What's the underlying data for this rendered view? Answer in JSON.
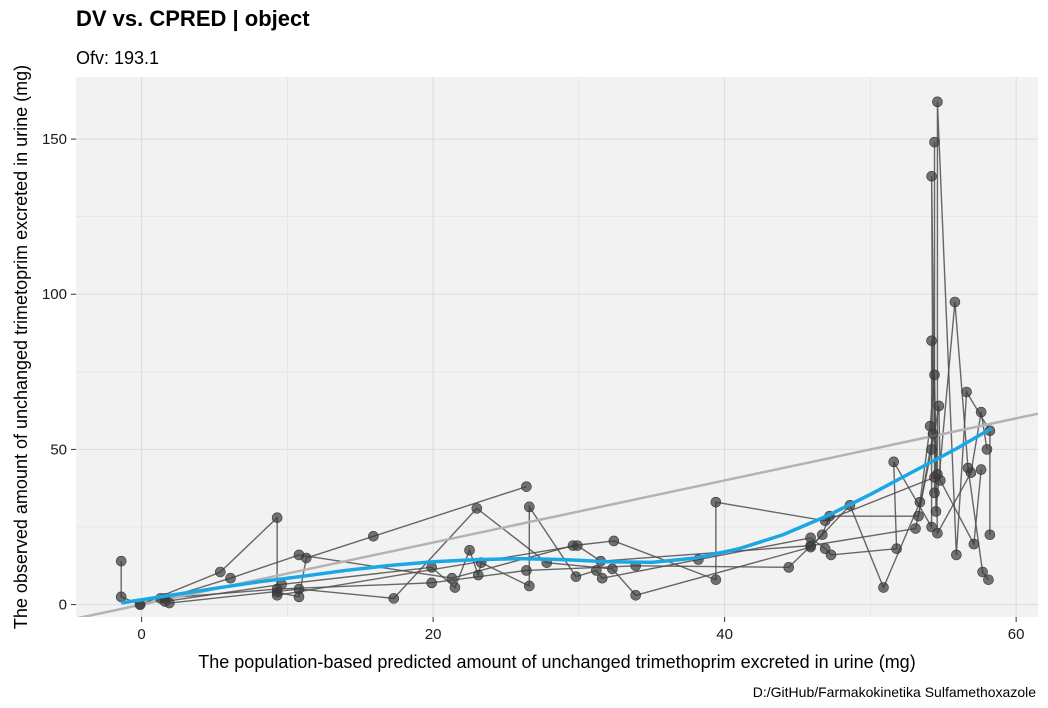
{
  "chart_data": {
    "type": "scatter",
    "title": "DV vs. CPRED | object",
    "subtitle": "Ofv: 193.1",
    "xlabel": "The population-based predicted amount of unchanged trimethoprim excreted in urine (mg)",
    "ylabel": "The observed amount of unchanged trimetoprim excreted in urine (mg)",
    "caption": "D:/GitHub/Farmakokinetika Sulfamethoxazole",
    "xlim": [
      -4.5,
      61.5
    ],
    "ylim": [
      -4,
      170
    ],
    "x_ticks": [
      0,
      20,
      40,
      60
    ],
    "y_ticks": [
      0,
      50,
      100,
      150
    ],
    "grid": true,
    "colors": {
      "panel": "#f2f2f2",
      "grid": "#dcdcdc",
      "points": "#3a3a3a",
      "lines": "#4d4d4d",
      "identity_line": "#b3b3b3",
      "smooth": "#1aa7e6"
    },
    "series": [
      {
        "id": 1,
        "points": [
          [
            -1.4,
            14
          ],
          [
            -1.4,
            2.5
          ],
          [
            -0.1,
            0
          ],
          [
            5.4,
            10.5
          ],
          [
            9.3,
            28
          ],
          [
            9.3,
            4
          ],
          [
            10.8,
            2.5
          ],
          [
            11.3,
            15
          ],
          [
            15.9,
            22
          ],
          [
            26.4,
            38
          ]
        ]
      },
      {
        "id": 2,
        "points": [
          [
            -0.1,
            0
          ],
          [
            1.6,
            2
          ],
          [
            6.1,
            8.5
          ],
          [
            10.8,
            16
          ],
          [
            21.3,
            8.5
          ],
          [
            29.6,
            19
          ],
          [
            32.4,
            20.5
          ],
          [
            39.4,
            8
          ],
          [
            39.4,
            33
          ],
          [
            46.9,
            27
          ],
          [
            54.4,
            41
          ],
          [
            54.4,
            149
          ],
          [
            54.4,
            36
          ]
        ]
      },
      {
        "id": 3,
        "points": [
          [
            1.6,
            1
          ],
          [
            9.6,
            6.5
          ],
          [
            19.9,
            12
          ],
          [
            21.5,
            5.5
          ],
          [
            22.5,
            17.5
          ],
          [
            23.1,
            9.5
          ],
          [
            23.3,
            13.5
          ],
          [
            26.6,
            6
          ],
          [
            26.6,
            31.5
          ],
          [
            29.8,
            9
          ],
          [
            31.2,
            11
          ],
          [
            31.6,
            8.5
          ],
          [
            38.2,
            14.5
          ],
          [
            45.9,
            21.5
          ],
          [
            46.9,
            18
          ],
          [
            47.3,
            16
          ],
          [
            51.8,
            18
          ],
          [
            51.6,
            46
          ],
          [
            54.2,
            25
          ],
          [
            54.2,
            85
          ],
          [
            54.6,
            42
          ],
          [
            54.6,
            162
          ],
          [
            55.9,
            16
          ],
          [
            56.6,
            68.5
          ],
          [
            58.2,
            56
          ],
          [
            58.2,
            22.5
          ]
        ]
      },
      {
        "id": 4,
        "points": [
          [
            1.9,
            0.5
          ],
          [
            10.8,
            5
          ],
          [
            17.3,
            2
          ],
          [
            23.0,
            31
          ],
          [
            27.8,
            13.5
          ],
          [
            32.3,
            11.5
          ],
          [
            33.9,
            3
          ],
          [
            45.9,
            18.5
          ],
          [
            48.6,
            32
          ],
          [
            50.9,
            5.5
          ],
          [
            53.4,
            33
          ],
          [
            54.1,
            57.5
          ],
          [
            54.4,
            74
          ],
          [
            54.6,
            23
          ],
          [
            56.9,
            42.5
          ],
          [
            57.6,
            62
          ],
          [
            58.0,
            50
          ]
        ]
      },
      {
        "id": 5,
        "points": [
          [
            1.3,
            2
          ],
          [
            9.3,
            5
          ],
          [
            19.9,
            7
          ],
          [
            26.4,
            11
          ],
          [
            33.9,
            12.5
          ],
          [
            44.4,
            12
          ],
          [
            46.7,
            22.5
          ],
          [
            47.2,
            28.5
          ],
          [
            53.3,
            28.5
          ],
          [
            54.3,
            55
          ],
          [
            54.2,
            138
          ],
          [
            54.5,
            30
          ],
          [
            55.8,
            97.5
          ],
          [
            56.7,
            44
          ],
          [
            57.7,
            10.5
          ],
          [
            58.1,
            8
          ]
        ]
      },
      {
        "id": 6,
        "points": [
          [
            9.3,
            3
          ],
          [
            29.9,
            19
          ],
          [
            31.5,
            14
          ],
          [
            45.9,
            19
          ],
          [
            53.1,
            24.5
          ],
          [
            54.2,
            50
          ],
          [
            54.7,
            64
          ],
          [
            54.8,
            40
          ],
          [
            57.1,
            19.5
          ],
          [
            57.6,
            43.5
          ]
        ]
      }
    ],
    "identity_line": [
      [
        -4.5,
        -4.5
      ],
      [
        61.5,
        61.5
      ]
    ],
    "smooth": [
      [
        -1.3,
        0.6
      ],
      [
        2,
        3
      ],
      [
        5,
        5.2
      ],
      [
        8,
        7.3
      ],
      [
        11,
        9.1
      ],
      [
        14,
        11
      ],
      [
        17,
        12.6
      ],
      [
        20,
        13.8
      ],
      [
        23,
        14.5
      ],
      [
        26,
        14.8
      ],
      [
        29,
        14.5
      ],
      [
        32,
        13.8
      ],
      [
        35,
        13.6
      ],
      [
        38,
        15
      ],
      [
        41,
        18
      ],
      [
        44,
        22.5
      ],
      [
        47,
        28.5
      ],
      [
        50,
        35.5
      ],
      [
        53,
        43
      ],
      [
        56,
        50.5
      ],
      [
        58.2,
        56.5
      ]
    ]
  }
}
